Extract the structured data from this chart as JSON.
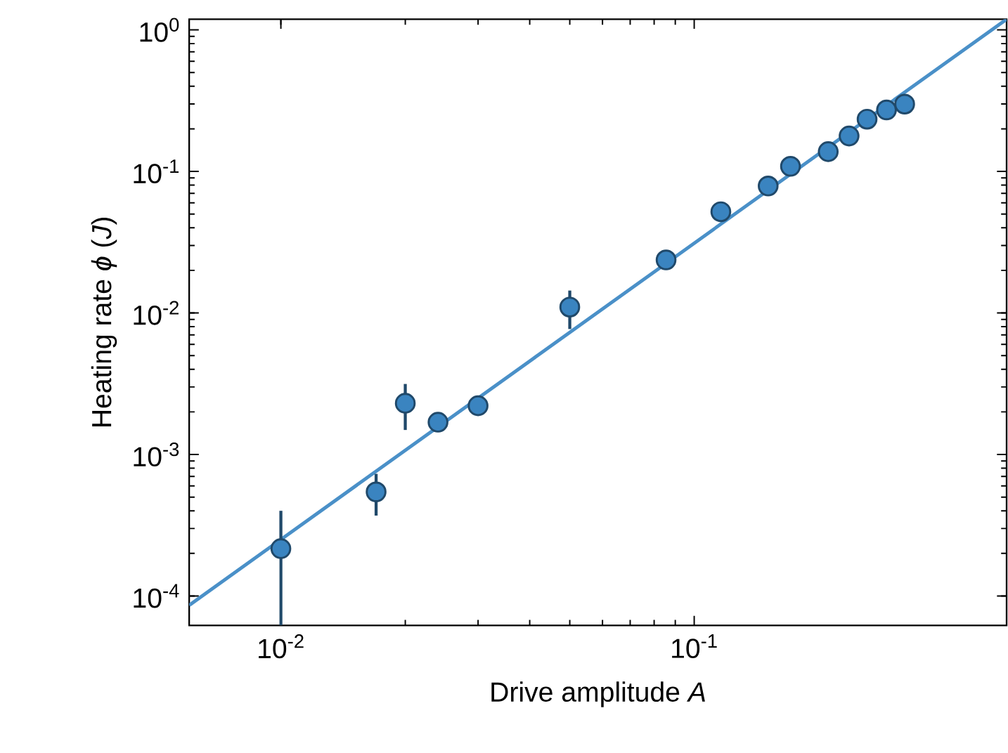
{
  "chart_data": {
    "type": "scatter",
    "xlabel": "Drive amplitude *A*",
    "ylabel": "Heating rate *ϕ* (*J*)",
    "log": "xy",
    "grid": false,
    "xlim": [
      0.006,
      0.57
    ],
    "ylim": [
      6.2e-05,
      1.19
    ],
    "xticks": [
      {
        "value": 0.01,
        "label": "10$^{-2}$"
      },
      {
        "value": 0.1,
        "label": "10$^{-1}$"
      }
    ],
    "yticks": [
      {
        "value": 0.0001,
        "label": "10$^{-4}$"
      },
      {
        "value": 0.001,
        "label": "10$^{-3}$"
      },
      {
        "value": 0.01,
        "label": "10$^{-2}$"
      },
      {
        "value": 0.1,
        "label": "10$^{-1}$"
      },
      {
        "value": 1,
        "label": "10$^{0}$"
      }
    ],
    "series": [
      {
        "marker": "circle",
        "color": "#3a84c0",
        "x": [
          0.01,
          0.017,
          0.02,
          0.024,
          0.03,
          0.05,
          0.0855,
          0.116,
          0.151,
          0.171,
          0.211,
          0.237,
          0.262,
          0.292,
          0.323
        ],
        "values": [
          0.000216,
          0.000544,
          0.0023,
          0.00169,
          0.00221,
          0.011,
          0.0237,
          0.0519,
          0.0789,
          0.1087,
          0.138,
          0.178,
          0.234,
          0.272,
          0.299
        ],
        "errors": [
          [
            6.2e-05,
            0.0004
          ],
          [
            0.00037,
            0.00073
          ],
          [
            0.00149,
            0.00315
          ],
          null,
          null,
          [
            0.0077,
            0.0144
          ],
          null,
          null,
          null,
          null,
          null,
          null,
          null,
          null,
          null
        ]
      },
      {
        "type": "line",
        "marker": "none",
        "color": "#4a90c8",
        "x": [
          0.006,
          0.57
        ],
        "values": [
          8.6e-05,
          1.19
        ]
      }
    ]
  }
}
